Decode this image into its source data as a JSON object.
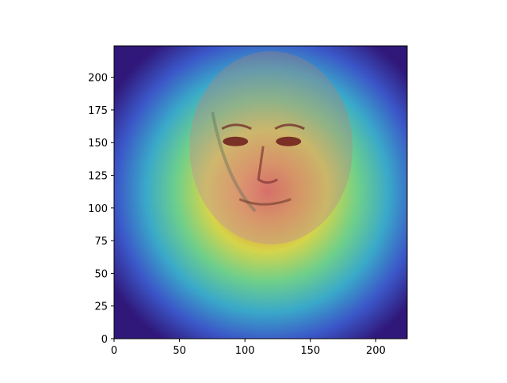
{
  "chart_data": {
    "type": "heatmap",
    "title": "",
    "xlabel": "",
    "ylabel": "",
    "description_kind": "attention heatmap overlay (jet colormap) on a grayscale face image",
    "xlim": [
      0,
      224
    ],
    "ylim": [
      224,
      0
    ],
    "x_ticks": [
      0,
      50,
      100,
      150,
      200
    ],
    "y_ticks": [
      0,
      25,
      50,
      75,
      100,
      125,
      150,
      175,
      200
    ],
    "heat_center": {
      "x": 117,
      "y": 113
    },
    "colormap": [
      "#30187a",
      "#3b57c8",
      "#3aa9c9",
      "#6fcf8a",
      "#d6d44a",
      "#e38e3a",
      "#d8332f"
    ],
    "face_center": {
      "x": 120,
      "y": 140
    }
  }
}
